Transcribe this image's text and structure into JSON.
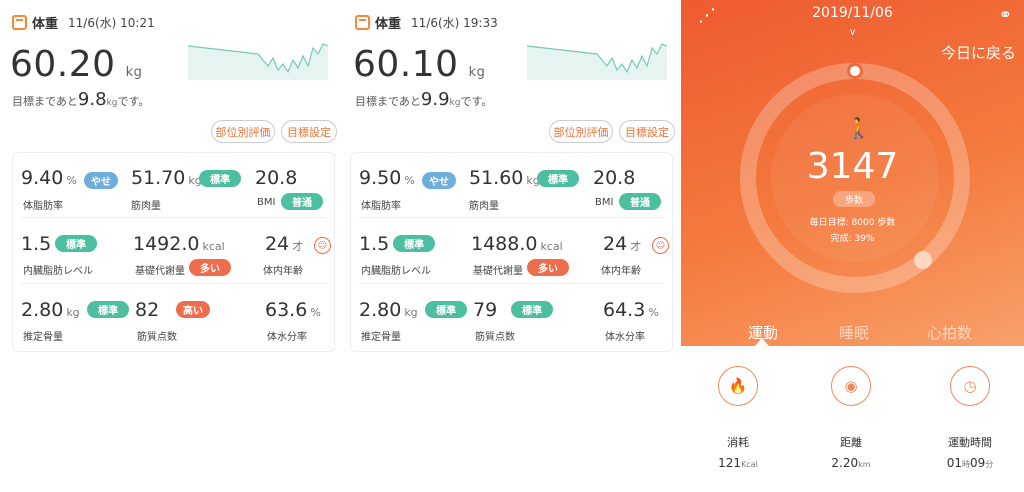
{
  "panel1": {
    "title": "体重",
    "datetime": "11/6(水) 10:21",
    "weight": "60.20",
    "weight_unit": "kg",
    "goal_prefix": "目標まであと",
    "goal_value": "9.8",
    "goal_unit": "kg",
    "goal_suffix": "です。",
    "btn_parts": "部位別評価",
    "btn_goal": "目標設定",
    "metrics": {
      "fat_val": "9.40",
      "fat_unit": "%",
      "fat_badge": "やせ",
      "fat_lbl": "体脂肪率",
      "muscle_val": "51.70",
      "muscle_unit": "kg",
      "muscle_badge": "標準",
      "muscle_lbl": "筋肉量",
      "bmi_val": "20.8",
      "bmi_lbl": "BMI",
      "bmi_badge": "普通",
      "visc_val": "1.5",
      "visc_badge": "標準",
      "visc_lbl": "内臓脂肪レベル",
      "bmr_val": "1492.0",
      "bmr_unit": "kcal",
      "bmr_lbl": "基礎代謝量",
      "bmr_badge": "多い",
      "age_val": "24",
      "age_unit": "才",
      "age_lbl": "体内年齢",
      "bone_val": "2.80",
      "bone_unit": "kg",
      "bone_badge": "標準",
      "bone_lbl": "推定骨量",
      "mscore_val": "82",
      "mscore_badge": "高い",
      "mscore_lbl": "筋質点数",
      "water_val": "63.6",
      "water_unit": "%",
      "water_lbl": "体水分率"
    }
  },
  "panel2": {
    "title": "体重",
    "datetime": "11/6(水) 19:33",
    "weight": "60.10",
    "weight_unit": "kg",
    "goal_prefix": "目標まであと",
    "goal_value": "9.9",
    "goal_unit": "kg",
    "goal_suffix": "です。",
    "btn_parts": "部位別評価",
    "btn_goal": "目標設定",
    "metrics": {
      "fat_val": "9.50",
      "fat_unit": "%",
      "fat_badge": "やせ",
      "fat_lbl": "体脂肪率",
      "muscle_val": "51.60",
      "muscle_unit": "kg",
      "muscle_badge": "標準",
      "muscle_lbl": "筋肉量",
      "bmi_val": "20.8",
      "bmi_lbl": "BMI",
      "bmi_badge": "普通",
      "visc_val": "1.5",
      "visc_badge": "標準",
      "visc_lbl": "内臓脂肪レベル",
      "bmr_val": "1488.0",
      "bmr_unit": "kcal",
      "bmr_lbl": "基礎代謝量",
      "bmr_badge": "多い",
      "age_val": "24",
      "age_unit": "才",
      "age_lbl": "体内年齢",
      "bone_val": "2.80",
      "bone_unit": "kg",
      "bone_badge": "標準",
      "bone_lbl": "推定骨量",
      "mscore_val": "79",
      "mscore_badge": "標準",
      "mscore_lbl": "筋質点数",
      "water_val": "64.3",
      "water_unit": "%",
      "water_lbl": "体水分率"
    }
  },
  "activity": {
    "date": "2019/11/06",
    "today_btn": "今日に戻る",
    "steps": "3147",
    "steps_badge": "歩数",
    "daily_goal": "毎日目標: 8000 歩数",
    "completion": "完成: 39%",
    "completion_fraction": 0.39,
    "tabs": [
      "運動",
      "睡眠",
      "心拍数"
    ],
    "calories_lbl": "消耗",
    "calories_val": "121",
    "calories_unit": "Kcal",
    "distance_lbl": "距離",
    "distance_val": "2.20",
    "distance_unit": "km",
    "time_lbl": "運動時間",
    "time_h": "01",
    "time_h_unit": "時",
    "time_m": "09",
    "time_m_unit": "分",
    "colors": {
      "accent": "#f06a3b",
      "teal": "#4bbf9f",
      "blue": "#6eaedc",
      "red": "#ee6d4d"
    }
  }
}
